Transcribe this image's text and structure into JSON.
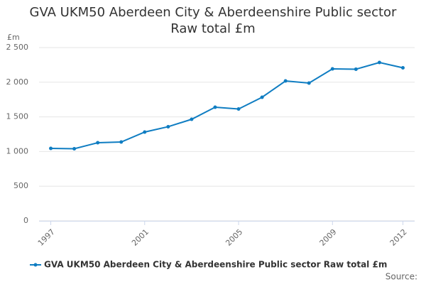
{
  "chart_data": {
    "type": "line",
    "title": "GVA UKM50 Aberdeen City & Aberdeenshire Public sector Raw total £m",
    "y_label": "£m",
    "source": "Source:",
    "x": [
      1997,
      1998,
      1999,
      2000,
      2001,
      2002,
      2003,
      2004,
      2005,
      2006,
      2007,
      2008,
      2009,
      2010,
      2011,
      2012
    ],
    "series": [
      {
        "name": "GVA UKM50 Aberdeen City & Aberdeenshire Public sector Raw total £m",
        "color": "#0f7dc2",
        "values": [
          1045,
          1040,
          1127,
          1137,
          1281,
          1358,
          1465,
          1639,
          1614,
          1783,
          2018,
          1988,
          2193,
          2188,
          2285,
          2208
        ]
      }
    ],
    "xlim": [
      1996.5,
      2012.5
    ],
    "xticks": [
      1997,
      2001,
      2005,
      2009,
      2012
    ],
    "ylim": [
      0,
      2500
    ],
    "yticks": [
      0,
      500,
      {
        "value": 1000,
        "label": "1 000"
      },
      {
        "value": 1500,
        "label": "1 500"
      },
      {
        "value": 2000,
        "label": "2 000"
      },
      {
        "value": 2500,
        "label": "2 500"
      }
    ],
    "grid": true
  }
}
